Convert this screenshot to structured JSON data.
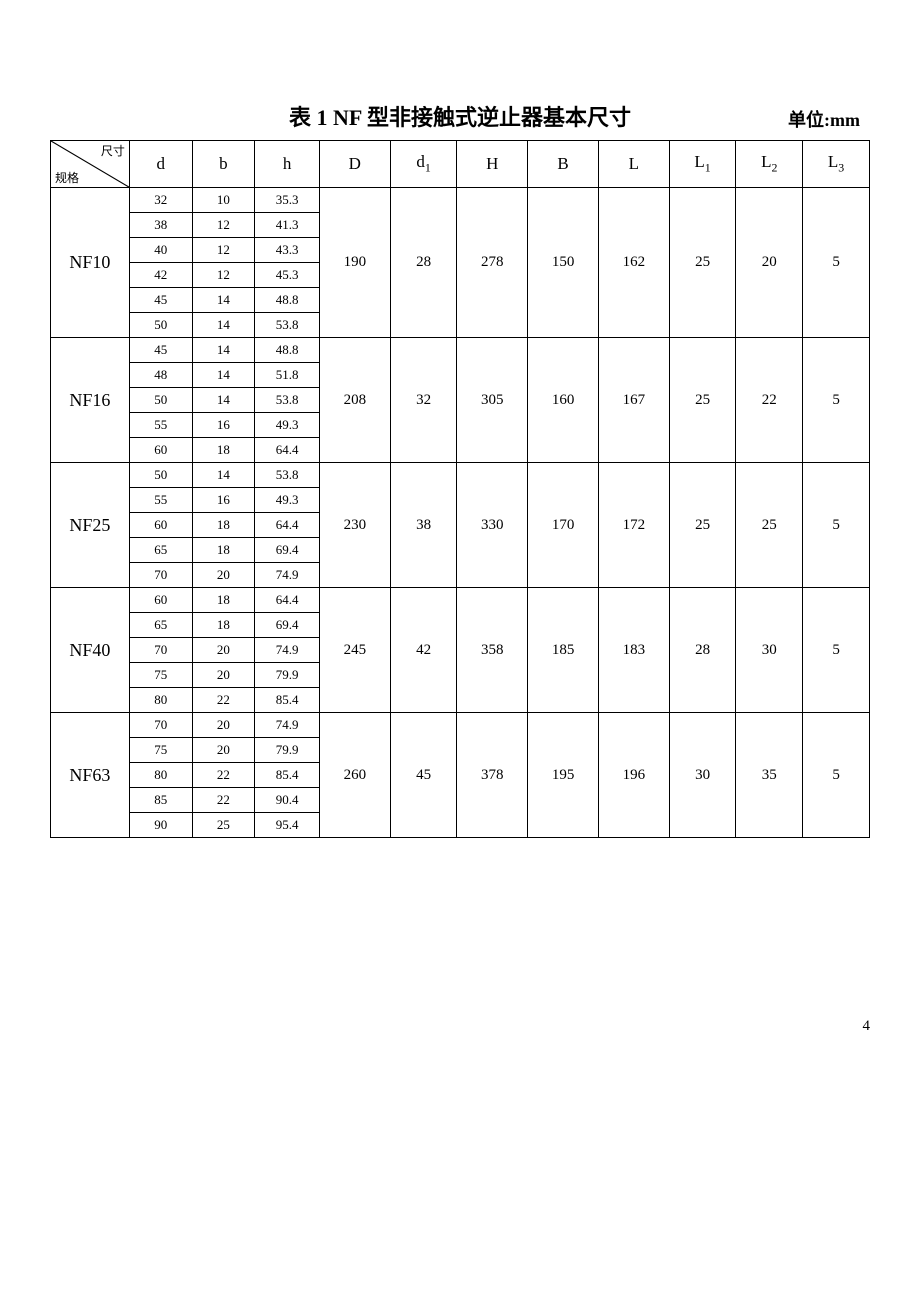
{
  "title": "表 1    NF 型非接触式逆止器基本尺寸",
  "unit": "单位:mm",
  "page_number": "4",
  "header": {
    "diag_top": "尺寸",
    "diag_bot": "规格",
    "cols": [
      "d",
      "b",
      "h",
      "D",
      "d₁",
      "H",
      "B",
      "L",
      "L₁",
      "L₂",
      "L₃"
    ]
  },
  "groups": [
    {
      "model": "NF10",
      "rows": [
        {
          "d": "32",
          "b": "10",
          "h": "35.3"
        },
        {
          "d": "38",
          "b": "12",
          "h": "41.3"
        },
        {
          "d": "40",
          "b": "12",
          "h": "43.3"
        },
        {
          "d": "42",
          "b": "12",
          "h": "45.3"
        },
        {
          "d": "45",
          "b": "14",
          "h": "48.8"
        },
        {
          "d": "50",
          "b": "14",
          "h": "53.8"
        }
      ],
      "span": {
        "D": "190",
        "d1": "28",
        "H": "278",
        "B": "150",
        "L": "162",
        "L1": "25",
        "L2": "20",
        "L3": "5"
      }
    },
    {
      "model": "NF16",
      "rows": [
        {
          "d": "45",
          "b": "14",
          "h": "48.8"
        },
        {
          "d": "48",
          "b": "14",
          "h": "51.8"
        },
        {
          "d": "50",
          "b": "14",
          "h": "53.8"
        },
        {
          "d": "55",
          "b": "16",
          "h": "49.3"
        },
        {
          "d": "60",
          "b": "18",
          "h": "64.4"
        }
      ],
      "span": {
        "D": "208",
        "d1": "32",
        "H": "305",
        "B": "160",
        "L": "167",
        "L1": "25",
        "L2": "22",
        "L3": "5"
      }
    },
    {
      "model": "NF25",
      "rows": [
        {
          "d": "50",
          "b": "14",
          "h": "53.8"
        },
        {
          "d": "55",
          "b": "16",
          "h": "49.3"
        },
        {
          "d": "60",
          "b": "18",
          "h": "64.4"
        },
        {
          "d": "65",
          "b": "18",
          "h": "69.4"
        },
        {
          "d": "70",
          "b": "20",
          "h": "74.9"
        }
      ],
      "span": {
        "D": "230",
        "d1": "38",
        "H": "330",
        "B": "170",
        "L": "172",
        "L1": "25",
        "L2": "25",
        "L3": "5"
      }
    },
    {
      "model": "NF40",
      "rows": [
        {
          "d": "60",
          "b": "18",
          "h": "64.4"
        },
        {
          "d": "65",
          "b": "18",
          "h": "69.4"
        },
        {
          "d": "70",
          "b": "20",
          "h": "74.9"
        },
        {
          "d": "75",
          "b": "20",
          "h": "79.9"
        },
        {
          "d": "80",
          "b": "22",
          "h": "85.4"
        }
      ],
      "span": {
        "D": "245",
        "d1": "42",
        "H": "358",
        "B": "185",
        "L": "183",
        "L1": "28",
        "L2": "30",
        "L3": "5"
      }
    },
    {
      "model": "NF63",
      "rows": [
        {
          "d": "70",
          "b": "20",
          "h": "74.9"
        },
        {
          "d": "75",
          "b": "20",
          "h": "79.9"
        },
        {
          "d": "80",
          "b": "22",
          "h": "85.4"
        },
        {
          "d": "85",
          "b": "22",
          "h": "90.4"
        },
        {
          "d": "90",
          "b": "25",
          "h": "95.4"
        }
      ],
      "span": {
        "D": "260",
        "d1": "45",
        "H": "378",
        "B": "195",
        "L": "196",
        "L1": "30",
        "L2": "35",
        "L3": "5"
      }
    }
  ]
}
